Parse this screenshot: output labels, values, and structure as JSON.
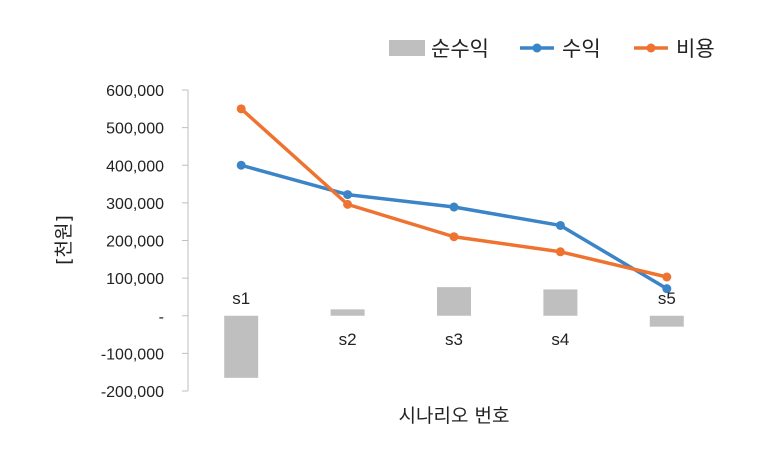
{
  "chart_data": {
    "type": "bar",
    "categories": [
      "s1",
      "s2",
      "s3",
      "s4",
      "s5"
    ],
    "xlabel": "시나리오 번호",
    "ylabel": "[천원]",
    "ylim": [
      -200000,
      600000
    ],
    "y_ticks": [
      {
        "value": 600000,
        "label": "600,000"
      },
      {
        "value": 500000,
        "label": "500,000"
      },
      {
        "value": 400000,
        "label": "400,000"
      },
      {
        "value": 300000,
        "label": "300,000"
      },
      {
        "value": 200000,
        "label": "200,000"
      },
      {
        "value": 100000,
        "label": "100,000"
      },
      {
        "value": 0,
        "label": "-"
      },
      {
        "value": -100000,
        "label": "-100,000"
      },
      {
        "value": -200000,
        "label": "-200,000"
      }
    ],
    "grid": false,
    "legend_position": "top-right",
    "series": [
      {
        "name": "순수익",
        "kind": "bar",
        "color": "#bfbfbf",
        "values": [
          -165000,
          17000,
          76000,
          70000,
          -29000
        ]
      },
      {
        "name": "수익",
        "kind": "line",
        "color": "#3c84c8",
        "values": [
          400000,
          322000,
          289000,
          240000,
          72000
        ]
      },
      {
        "name": "비용",
        "kind": "line",
        "color": "#ee7330",
        "values": [
          550000,
          296000,
          210000,
          170000,
          103000
        ]
      }
    ]
  }
}
